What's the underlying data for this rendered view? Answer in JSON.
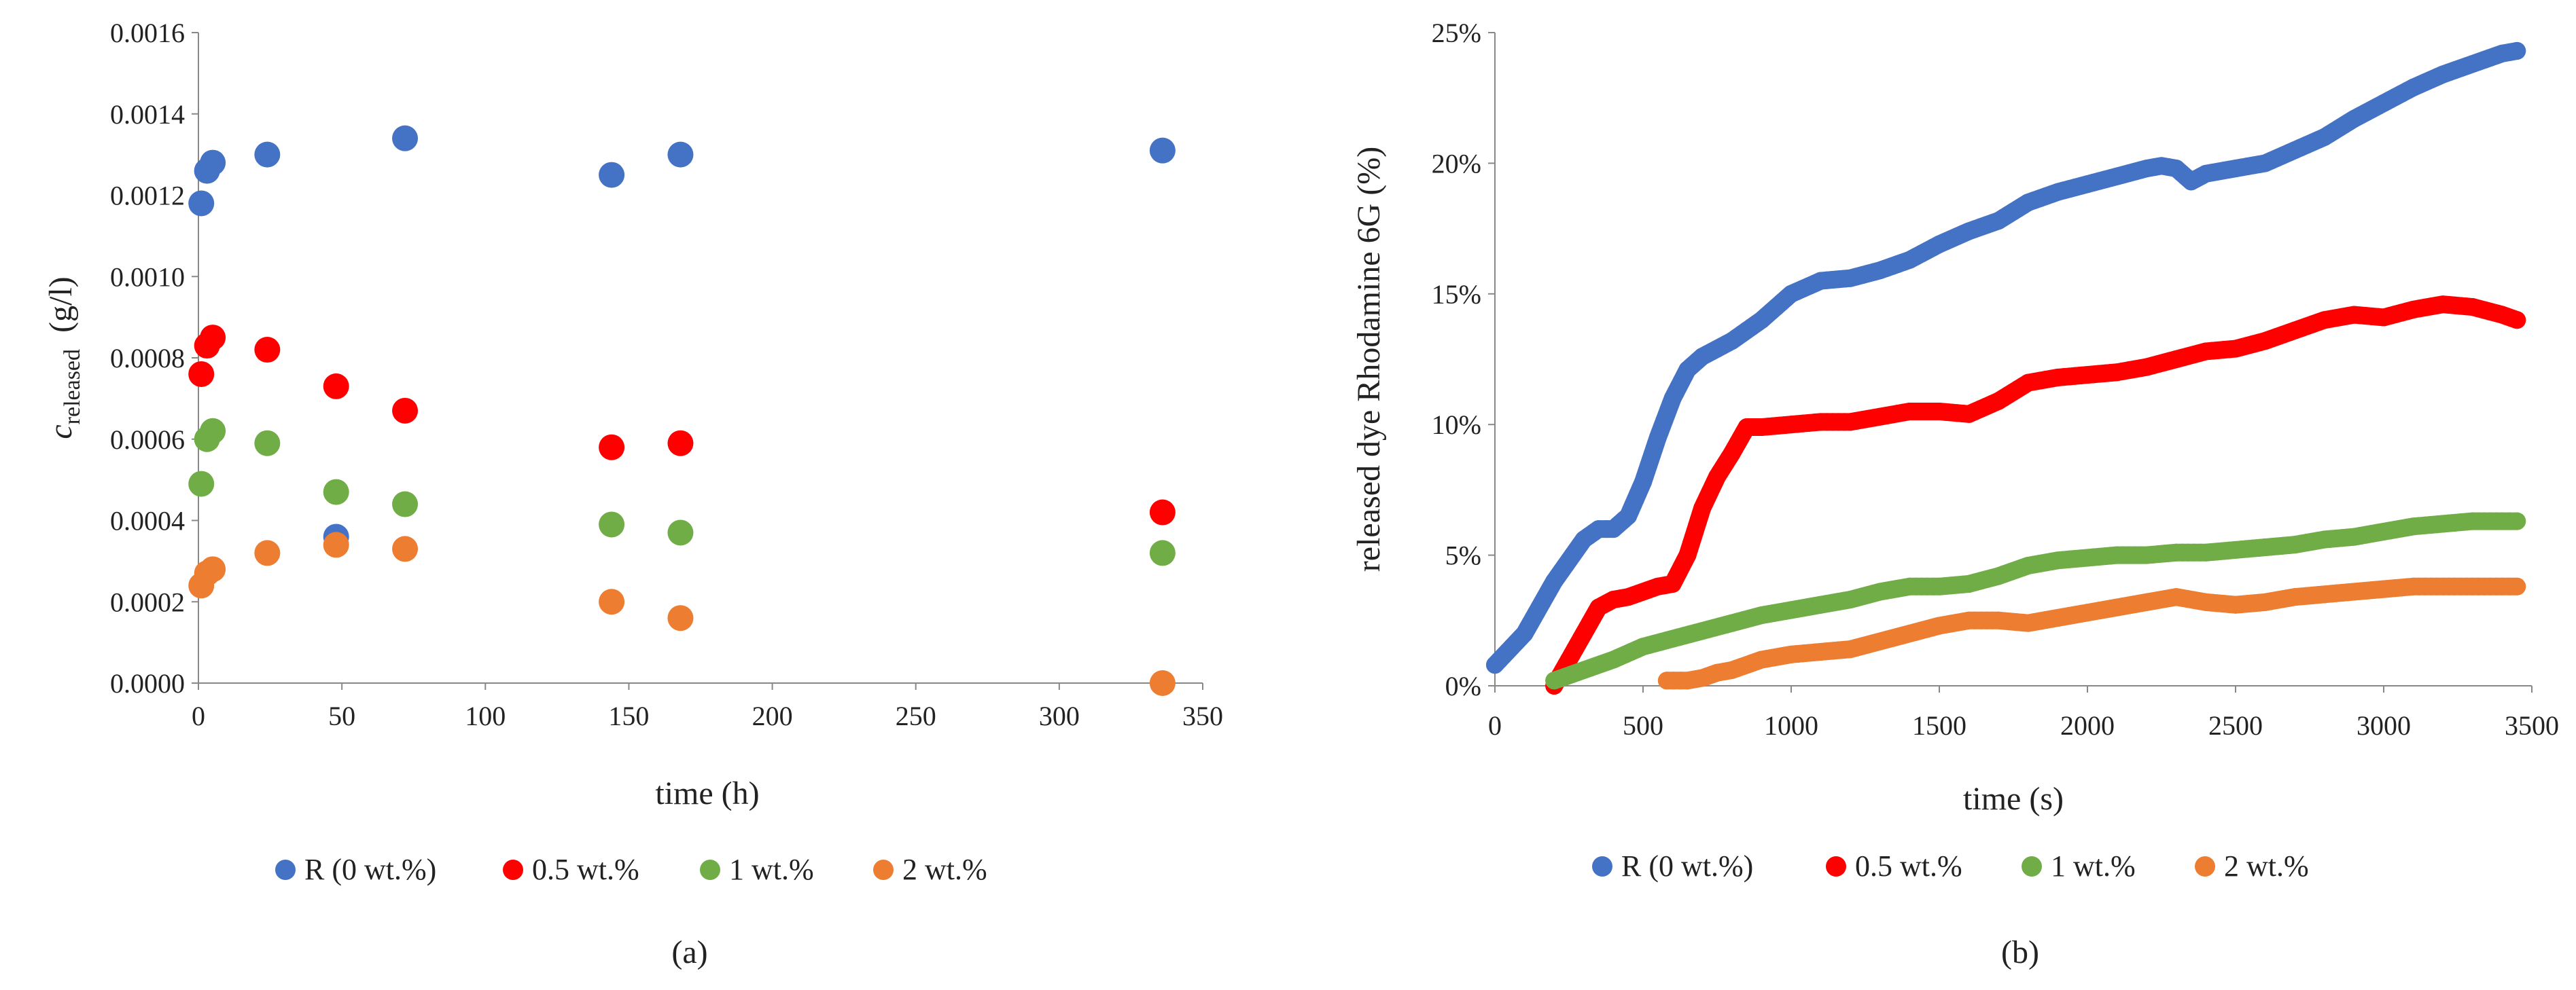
{
  "chart_data": [
    {
      "type": "scatter",
      "caption": "(a)",
      "xlabel": "time (h)",
      "ylabel_main": "c",
      "ylabel_sub": "released",
      "ylabel_unit": "(g/l)",
      "xlim": [
        0,
        350
      ],
      "ylim": [
        0,
        0.0016
      ],
      "xticks": [
        "0",
        "50",
        "100",
        "150",
        "200",
        "250",
        "300",
        "350"
      ],
      "yticks": [
        "0.0000",
        "0.0002",
        "0.0004",
        "0.0006",
        "0.0008",
        "0.0010",
        "0.0012",
        "0.0014",
        "0.0016"
      ],
      "legend_position": "bottom",
      "series": [
        {
          "name": "R (0 wt.%)",
          "color": "#4472C4",
          "x": [
            1,
            3,
            5,
            24,
            48,
            72,
            144,
            168,
            336
          ],
          "y": [
            0.00118,
            0.00126,
            0.00128,
            0.0013,
            0.00036,
            0.00134,
            0.00125,
            0.0013,
            0.00131
          ]
        },
        {
          "name": "0.5 wt.%",
          "color": "#FF0000",
          "x": [
            1,
            3,
            5,
            24,
            48,
            72,
            144,
            168,
            336
          ],
          "y": [
            0.00076,
            0.00083,
            0.00085,
            0.00082,
            0.00073,
            0.00067,
            0.00058,
            0.00059,
            0.00042
          ]
        },
        {
          "name": "1 wt.%",
          "color": "#70AD47",
          "x": [
            1,
            3,
            5,
            24,
            48,
            72,
            144,
            168,
            336
          ],
          "y": [
            0.00049,
            0.0006,
            0.00062,
            0.00059,
            0.00047,
            0.00044,
            0.00039,
            0.00037,
            0.00032
          ]
        },
        {
          "name": "2 wt.%",
          "color": "#ED7D31",
          "x": [
            1,
            3,
            5,
            24,
            48,
            72,
            144,
            168,
            336
          ],
          "y": [
            0.00024,
            0.00027,
            0.00028,
            0.00032,
            0.00034,
            0.00033,
            0.0002,
            0.00016,
            0.0
          ]
        }
      ]
    },
    {
      "type": "line",
      "caption": "(b)",
      "xlabel": "time (s)",
      "ylabel": "released dye Rhodamine 6G (%)",
      "xlim": [
        0,
        3500
      ],
      "ylim": [
        0,
        25
      ],
      "xticks": [
        "0",
        "500",
        "1000",
        "1500",
        "2000",
        "2500",
        "3000",
        "3500"
      ],
      "yticks": [
        "0%",
        "5%",
        "10%",
        "15%",
        "20%",
        "25%"
      ],
      "legend_position": "bottom",
      "series": [
        {
          "name": "R (0 wt.%)",
          "color": "#4472C4",
          "x": [
            0,
            100,
            200,
            300,
            350,
            400,
            450,
            500,
            550,
            600,
            650,
            700,
            750,
            800,
            900,
            1000,
            1100,
            1200,
            1300,
            1400,
            1500,
            1600,
            1700,
            1800,
            1900,
            2000,
            2100,
            2200,
            2250,
            2300,
            2350,
            2400,
            2500,
            2600,
            2700,
            2800,
            2900,
            3000,
            3100,
            3200,
            3300,
            3400,
            3450
          ],
          "y": [
            0.8,
            2.0,
            4.0,
            5.6,
            6.0,
            6.0,
            6.5,
            7.8,
            9.5,
            11.0,
            12.1,
            12.6,
            12.9,
            13.2,
            14.0,
            15.0,
            15.5,
            15.6,
            15.9,
            16.3,
            16.9,
            17.4,
            17.8,
            18.5,
            18.9,
            19.2,
            19.5,
            19.8,
            19.9,
            19.8,
            19.3,
            19.6,
            19.8,
            20.0,
            20.5,
            21.0,
            21.7,
            22.3,
            22.9,
            23.4,
            23.8,
            24.2,
            24.3
          ]
        },
        {
          "name": "0.5 wt.%",
          "color": "#FF0000",
          "x": [
            200,
            250,
            300,
            350,
            400,
            450,
            500,
            550,
            600,
            650,
            700,
            750,
            800,
            850,
            900,
            1000,
            1100,
            1200,
            1300,
            1400,
            1500,
            1600,
            1700,
            1800,
            1900,
            2000,
            2100,
            2200,
            2300,
            2400,
            2500,
            2600,
            2700,
            2800,
            2900,
            3000,
            3100,
            3200,
            3300,
            3400,
            3450
          ],
          "y": [
            0,
            1.0,
            2.0,
            3.0,
            3.3,
            3.4,
            3.6,
            3.8,
            3.9,
            5.0,
            6.8,
            8.0,
            8.9,
            9.9,
            9.9,
            10.0,
            10.1,
            10.1,
            10.3,
            10.5,
            10.5,
            10.4,
            10.9,
            11.6,
            11.8,
            11.9,
            12.0,
            12.2,
            12.5,
            12.8,
            12.9,
            13.2,
            13.6,
            14.0,
            14.2,
            14.1,
            14.4,
            14.6,
            14.5,
            14.2,
            14.0
          ]
        },
        {
          "name": "1 wt.%",
          "color": "#70AD47",
          "x": [
            200,
            300,
            400,
            500,
            600,
            700,
            800,
            900,
            1000,
            1100,
            1200,
            1300,
            1400,
            1500,
            1600,
            1700,
            1800,
            1900,
            2000,
            2100,
            2200,
            2300,
            2400,
            2500,
            2600,
            2700,
            2800,
            2900,
            3000,
            3100,
            3200,
            3300,
            3400,
            3450
          ],
          "y": [
            0.2,
            0.6,
            1.0,
            1.5,
            1.8,
            2.1,
            2.4,
            2.7,
            2.9,
            3.1,
            3.3,
            3.6,
            3.8,
            3.8,
            3.9,
            4.2,
            4.6,
            4.8,
            4.9,
            5.0,
            5.0,
            5.1,
            5.1,
            5.2,
            5.3,
            5.4,
            5.6,
            5.7,
            5.9,
            6.1,
            6.2,
            6.3,
            6.3,
            6.3
          ]
        },
        {
          "name": "2 wt.%",
          "color": "#ED7D31",
          "x": [
            580,
            650,
            700,
            750,
            800,
            850,
            900,
            1000,
            1100,
            1200,
            1300,
            1400,
            1500,
            1600,
            1700,
            1800,
            1900,
            2000,
            2100,
            2200,
            2300,
            2400,
            2500,
            2600,
            2700,
            2800,
            2900,
            3000,
            3100,
            3200,
            3300,
            3400,
            3450
          ],
          "y": [
            0.2,
            0.2,
            0.3,
            0.5,
            0.6,
            0.8,
            1.0,
            1.2,
            1.3,
            1.4,
            1.7,
            2.0,
            2.3,
            2.5,
            2.5,
            2.4,
            2.6,
            2.8,
            3.0,
            3.2,
            3.4,
            3.2,
            3.1,
            3.2,
            3.4,
            3.5,
            3.6,
            3.7,
            3.8,
            3.8,
            3.8,
            3.8,
            3.8
          ]
        }
      ]
    }
  ]
}
